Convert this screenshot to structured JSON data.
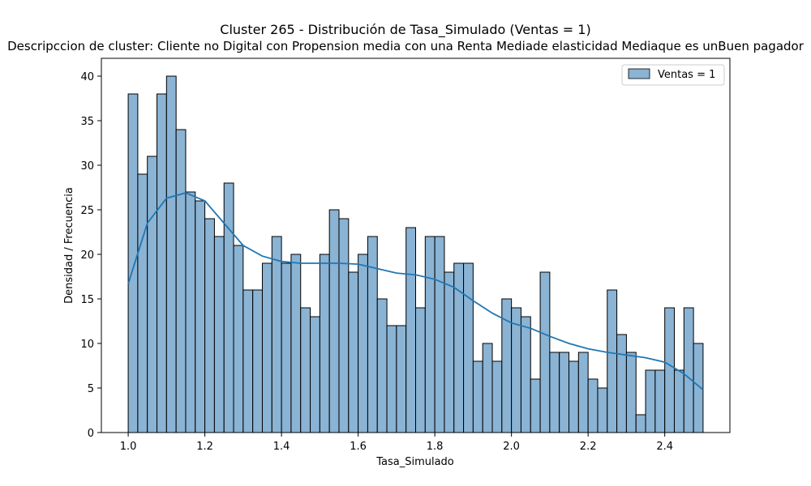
{
  "chart_data": {
    "type": "bar",
    "title": "Cluster 265 - Distribución de Tasa_Simulado (Ventas = 1)",
    "subtitle": "Descripccion de cluster: Cliente no Digital con Propension media con una Renta Mediade elasticidad Mediaque es unBuen pagador",
    "xlabel": "Tasa_Simulado",
    "ylabel": "Densidad / Frecuencia",
    "xlim": [
      0.93,
      2.57
    ],
    "ylim": [
      0,
      42
    ],
    "xticks": [
      1.0,
      1.2,
      1.4,
      1.6,
      1.8,
      2.0,
      2.2,
      2.4
    ],
    "xtick_labels": [
      "1.0",
      "1.2",
      "1.4",
      "1.6",
      "1.8",
      "2.0",
      "2.2",
      "2.4"
    ],
    "yticks": [
      0,
      5,
      10,
      15,
      20,
      25,
      30,
      35,
      40
    ],
    "ytick_labels": [
      "0",
      "5",
      "10",
      "15",
      "20",
      "25",
      "30",
      "35",
      "40"
    ],
    "bins": {
      "start": 1.0,
      "end": 2.5,
      "count": 60,
      "values": [
        38,
        29,
        31,
        38,
        40,
        34,
        27,
        26,
        24,
        22,
        28,
        21,
        16,
        16,
        19,
        22,
        19,
        20,
        14,
        13,
        20,
        25,
        24,
        18,
        20,
        22,
        15,
        12,
        12,
        23,
        14,
        22,
        22,
        18,
        19,
        19,
        8,
        10,
        8,
        15,
        14,
        13,
        6,
        18,
        9,
        9,
        8,
        9,
        6,
        5,
        16,
        11,
        9,
        2,
        7,
        7,
        14,
        7,
        14,
        10
      ]
    },
    "kde": {
      "x": [
        1.0,
        1.05,
        1.1,
        1.15,
        1.2,
        1.25,
        1.3,
        1.35,
        1.4,
        1.45,
        1.5,
        1.55,
        1.6,
        1.65,
        1.7,
        1.75,
        1.8,
        1.85,
        1.9,
        1.95,
        2.0,
        2.05,
        2.1,
        2.15,
        2.2,
        2.25,
        2.3,
        2.35,
        2.4,
        2.45,
        2.5
      ],
      "y": [
        16.7,
        23.5,
        26.3,
        26.9,
        26.0,
        23.5,
        21.0,
        19.8,
        19.2,
        19.0,
        19.0,
        19.0,
        18.9,
        18.4,
        17.9,
        17.7,
        17.2,
        16.3,
        14.8,
        13.4,
        12.3,
        11.7,
        10.8,
        10.0,
        9.4,
        9.0,
        8.7,
        8.4,
        7.9,
        6.6,
        4.8
      ]
    },
    "legend": {
      "placement": "top-right",
      "entries": [
        "Ventas = 1"
      ]
    },
    "grid": false,
    "colors": {
      "bar_fill": "#8ab3d4",
      "bar_edge": "#000000",
      "kde_line": "#1f77b4"
    }
  }
}
